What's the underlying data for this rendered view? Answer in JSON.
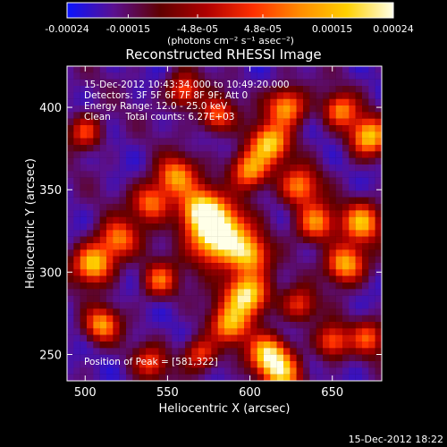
{
  "chart_data": {
    "type": "heatmap",
    "title": "Reconstructed RHESSI Image",
    "xlabel": "Heliocentric X (arcsec)",
    "ylabel": "Heliocentric Y (arcsec)",
    "xlim": [
      489,
      680
    ],
    "ylim": [
      234,
      425
    ],
    "x_ticks": [
      500,
      550,
      600,
      650
    ],
    "y_ticks": [
      250,
      300,
      350,
      400
    ],
    "colorbar": {
      "range": [
        -0.00024,
        0.00024
      ],
      "tick_values": [
        -0.00024,
        -0.00015,
        -4.8e-05,
        4.8e-05,
        0.00015,
        0.00024
      ],
      "tick_labels": [
        "-0.00024",
        "-0.00015",
        "-4.8e-05",
        "4.8e-05",
        "0.00015",
        "0.00024"
      ],
      "unit_label": "(photons cm⁻² s⁻¹ asec⁻²)",
      "colors": [
        "#0a14ff",
        "#5a1090",
        "#600000",
        "#b00000",
        "#ff3000",
        "#ff8c00",
        "#ffd000",
        "#ffffe8"
      ]
    },
    "info_lines": [
      "15-Dec-2012 10:43:34.000 to 10:49:20.000",
      "Detectors: 3F 5F 6F 7F 8F 9F; Att 0",
      "Energy Range: 12.0 - 25.0 keV",
      "Clean     Total counts: 6.27E+03"
    ],
    "peak_label": "Position of Peak = [581,322]",
    "peak_position": [
      581,
      322
    ],
    "timestamp": "15-Dec-2012 18:22",
    "hotspots": [
      {
        "x": 581,
        "y": 322,
        "amp": 1.0,
        "s": 12
      },
      {
        "x": 570,
        "y": 338,
        "amp": 0.7,
        "s": 9
      },
      {
        "x": 600,
        "y": 310,
        "amp": 0.55,
        "s": 8
      },
      {
        "x": 598,
        "y": 286,
        "amp": 0.85,
        "s": 9
      },
      {
        "x": 588,
        "y": 268,
        "amp": 0.6,
        "s": 8
      },
      {
        "x": 611,
        "y": 250,
        "amp": 0.75,
        "s": 8
      },
      {
        "x": 620,
        "y": 238,
        "amp": 0.6,
        "s": 8
      },
      {
        "x": 505,
        "y": 305,
        "amp": 0.75,
        "s": 8
      },
      {
        "x": 520,
        "y": 320,
        "amp": 0.55,
        "s": 8
      },
      {
        "x": 510,
        "y": 268,
        "amp": 0.6,
        "s": 7
      },
      {
        "x": 540,
        "y": 342,
        "amp": 0.55,
        "s": 8
      },
      {
        "x": 555,
        "y": 358,
        "amp": 0.6,
        "s": 8
      },
      {
        "x": 600,
        "y": 362,
        "amp": 0.65,
        "s": 8
      },
      {
        "x": 612,
        "y": 378,
        "amp": 0.7,
        "s": 8
      },
      {
        "x": 622,
        "y": 400,
        "amp": 0.65,
        "s": 8
      },
      {
        "x": 630,
        "y": 352,
        "amp": 0.55,
        "s": 8
      },
      {
        "x": 640,
        "y": 330,
        "amp": 0.6,
        "s": 8
      },
      {
        "x": 658,
        "y": 305,
        "amp": 0.7,
        "s": 8
      },
      {
        "x": 668,
        "y": 330,
        "amp": 0.65,
        "s": 8
      },
      {
        "x": 672,
        "y": 382,
        "amp": 0.7,
        "s": 8
      },
      {
        "x": 655,
        "y": 398,
        "amp": 0.55,
        "s": 7
      },
      {
        "x": 580,
        "y": 395,
        "amp": 0.5,
        "s": 7
      },
      {
        "x": 560,
        "y": 410,
        "amp": 0.5,
        "s": 7
      },
      {
        "x": 500,
        "y": 385,
        "amp": 0.45,
        "s": 7
      },
      {
        "x": 545,
        "y": 295,
        "amp": 0.5,
        "s": 7
      },
      {
        "x": 570,
        "y": 250,
        "amp": 0.45,
        "s": 7
      },
      {
        "x": 540,
        "y": 245,
        "amp": 0.4,
        "s": 7
      },
      {
        "x": 650,
        "y": 258,
        "amp": 0.5,
        "s": 7
      },
      {
        "x": 672,
        "y": 260,
        "amp": 0.45,
        "s": 7
      },
      {
        "x": 630,
        "y": 280,
        "amp": 0.4,
        "s": 7
      }
    ]
  }
}
